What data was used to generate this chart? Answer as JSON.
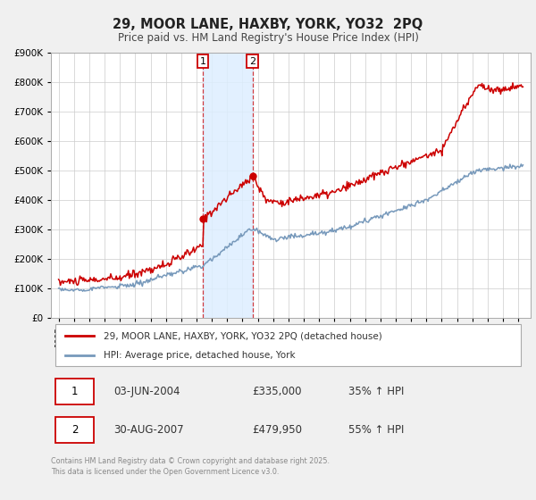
{
  "title": "29, MOOR LANE, HAXBY, YORK, YO32  2PQ",
  "subtitle": "Price paid vs. HM Land Registry's House Price Index (HPI)",
  "bg_color": "#f0f0f0",
  "plot_bg_color": "#ffffff",
  "grid_color": "#cccccc",
  "red_line_color": "#cc0000",
  "blue_line_color": "#7799bb",
  "marker1_date": 2004.42,
  "marker1_value": 335000,
  "marker2_date": 2007.66,
  "marker2_value": 479950,
  "vline1_date": 2004.42,
  "vline2_date": 2007.66,
  "shade_color": "#ddeeff",
  "legend_label_red": "29, MOOR LANE, HAXBY, YORK, YO32 2PQ (detached house)",
  "legend_label_blue": "HPI: Average price, detached house, York",
  "transaction1_num": "1",
  "transaction1_date": "03-JUN-2004",
  "transaction1_price": "£335,000",
  "transaction1_hpi": "35% ↑ HPI",
  "transaction2_num": "2",
  "transaction2_date": "30-AUG-2007",
  "transaction2_price": "£479,950",
  "transaction2_hpi": "55% ↑ HPI",
  "footer": "Contains HM Land Registry data © Crown copyright and database right 2025.\nThis data is licensed under the Open Government Licence v3.0.",
  "ylim_min": 0,
  "ylim_max": 900000,
  "xlim_min": 1994.5,
  "xlim_max": 2025.8,
  "title_fontsize": 10.5,
  "subtitle_fontsize": 8.5
}
